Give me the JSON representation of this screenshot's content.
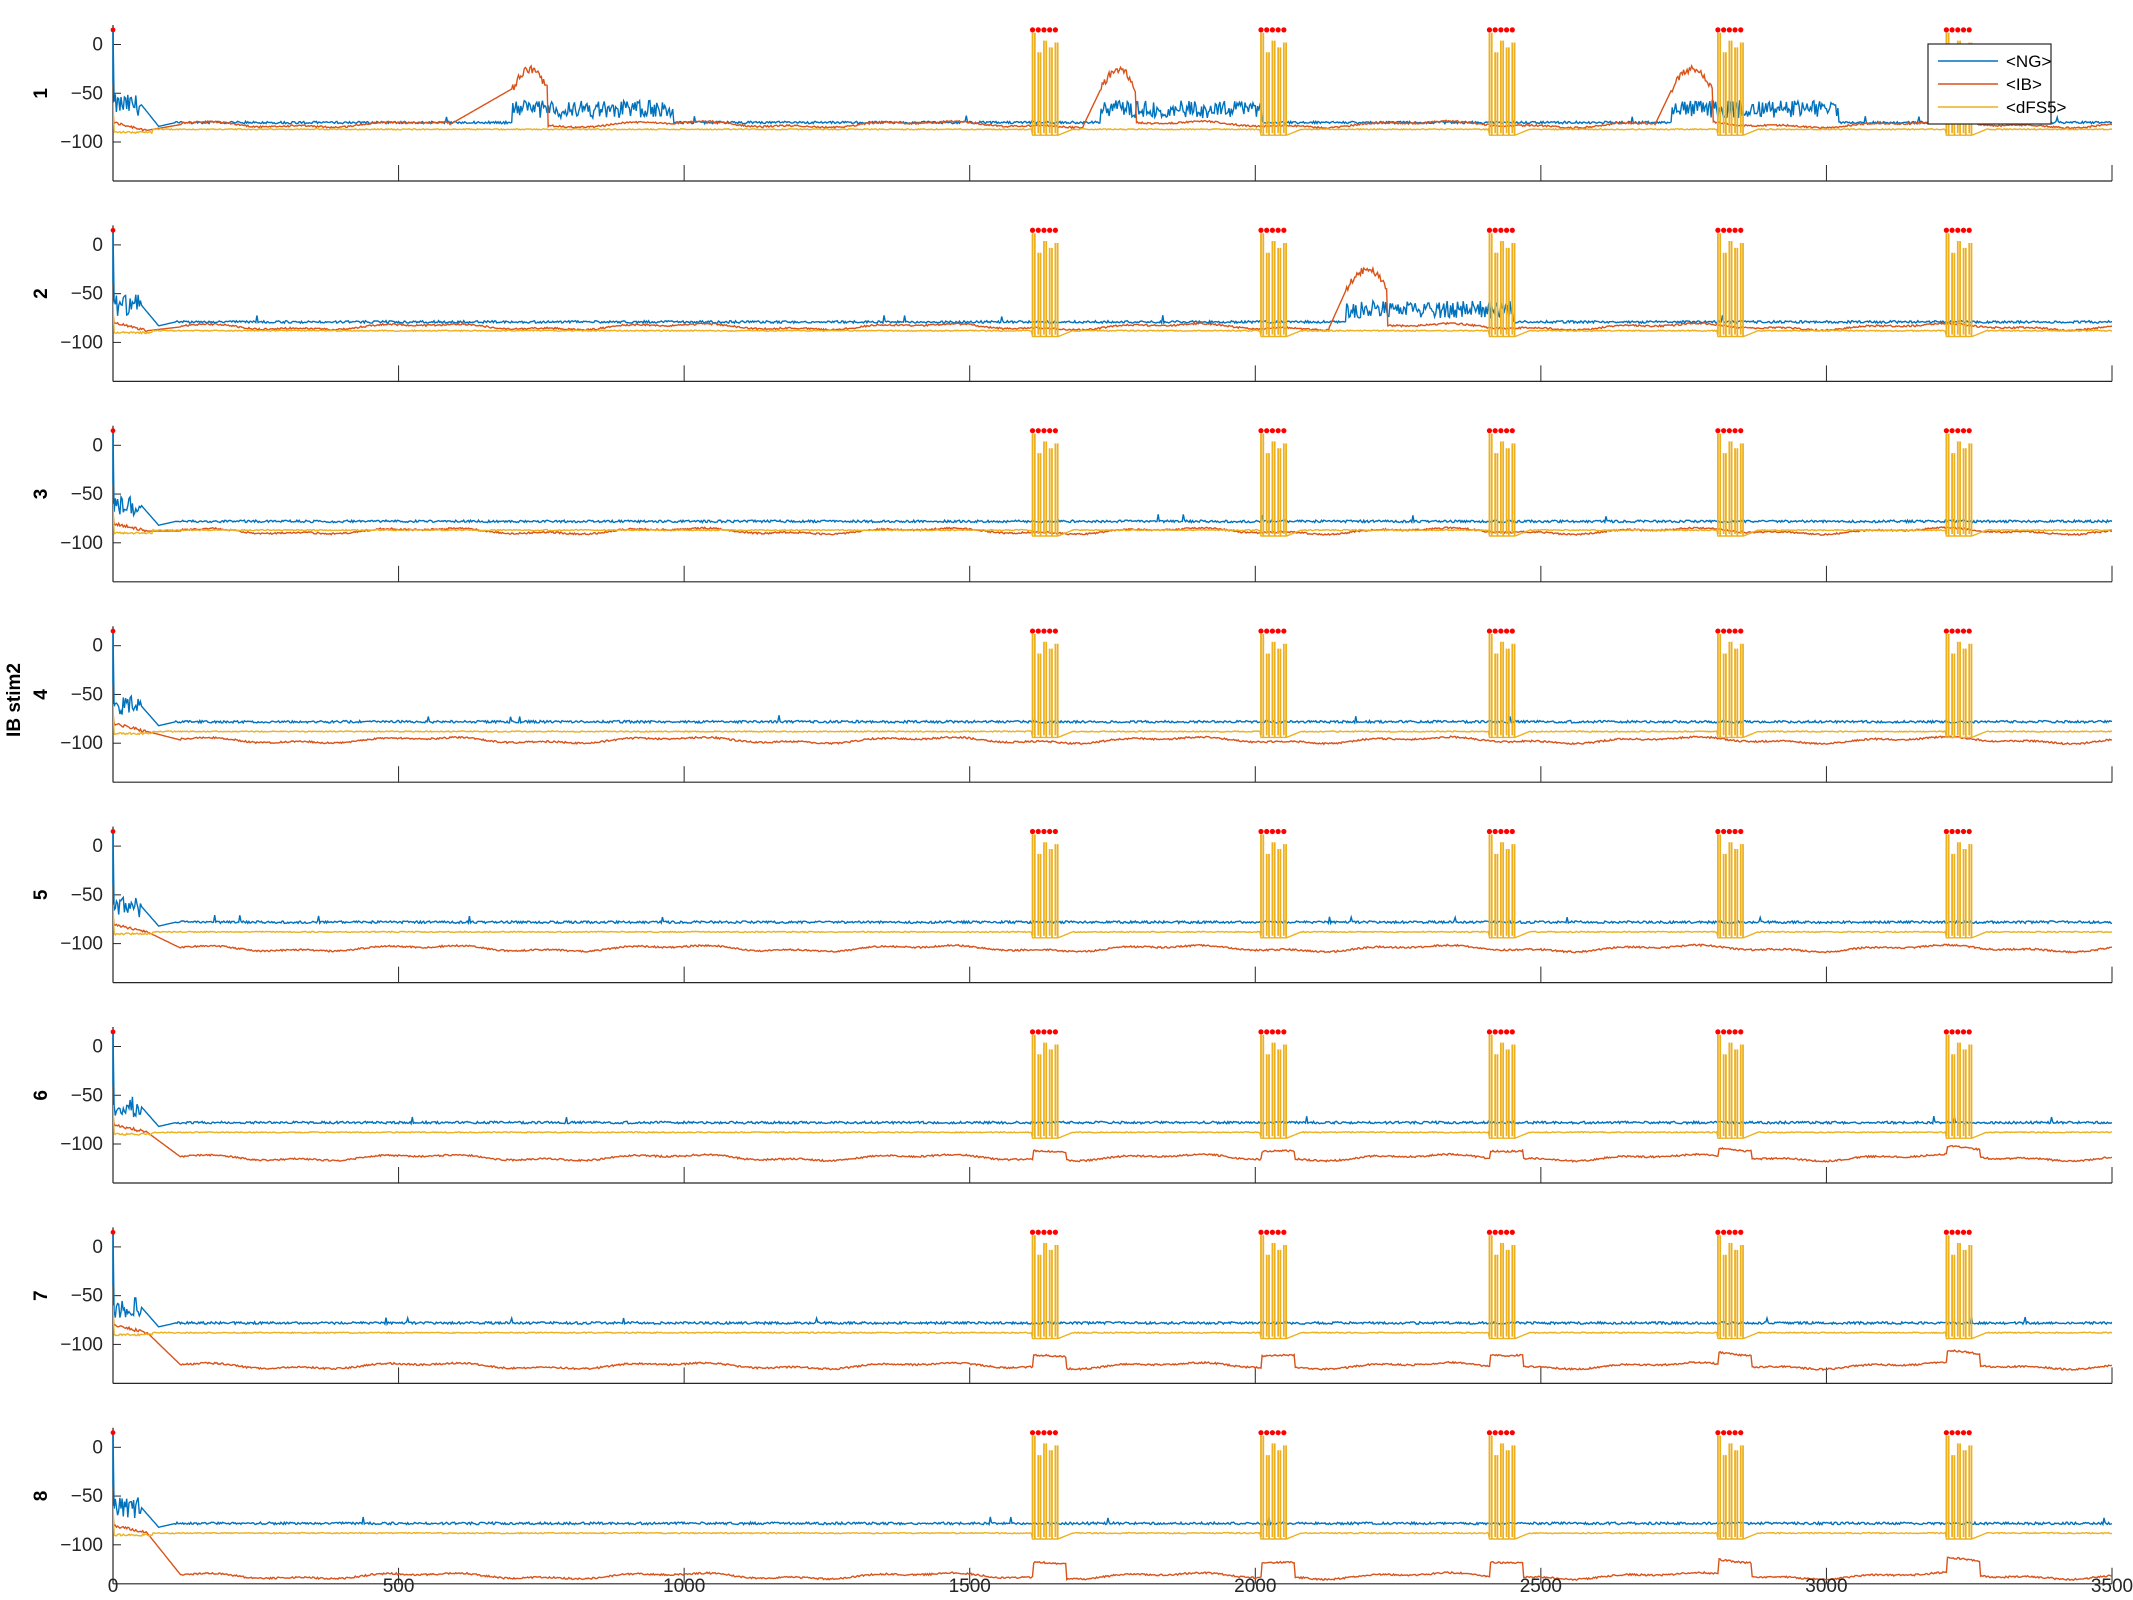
{
  "figure": {
    "ylabel": "IB stim2"
  },
  "chart_data": {
    "type": "line",
    "xlim": [
      0,
      3500
    ],
    "ylim": [
      -140,
      20
    ],
    "x_ticks": [
      0,
      500,
      1000,
      1500,
      2000,
      2500,
      3000,
      3500
    ],
    "y_ticks": [
      0,
      -50,
      -100
    ],
    "grid": false,
    "legend": {
      "placement": "top-right",
      "entries": [
        "<NG>",
        "<IB>",
        "<dFS5>"
      ]
    },
    "series_colors": {
      "NG": "#0072BD",
      "IB": "#D95319",
      "dFS5": "#EDB120",
      "marker": "#FF0000"
    },
    "burst_onsets": [
      1610,
      2010,
      2410,
      2810,
      3210
    ],
    "burst_spike_peak": 12,
    "burst_marker_y": 15,
    "panels": [
      {
        "label": "1",
        "ng_baseline": -80,
        "ib_baseline": -82,
        "dfs_baseline": -87,
        "ib_burst_bump": 0,
        "ib_plateaus": [
          [
            590,
            700,
            760,
            -45,
            -25
          ],
          [
            1700,
            1730,
            1790,
            -45,
            -25
          ],
          [
            2700,
            2730,
            2800,
            -45,
            -25
          ]
        ]
      },
      {
        "label": "2",
        "ng_baseline": -79,
        "ib_baseline": -84,
        "dfs_baseline": -88,
        "ib_burst_bump": 0,
        "ib_plateaus": [
          [
            2130,
            2160,
            2230,
            -45,
            -25
          ]
        ]
      },
      {
        "label": "3",
        "ng_baseline": -78,
        "ib_baseline": -88,
        "dfs_baseline": -87,
        "ib_burst_bump": 0,
        "ib_plateaus": []
      },
      {
        "label": "4",
        "ng_baseline": -78,
        "ib_baseline": -97,
        "dfs_baseline": -88,
        "ib_burst_bump": 0,
        "ib_plateaus": []
      },
      {
        "label": "5",
        "ng_baseline": -78,
        "ib_baseline": -105,
        "dfs_baseline": -88,
        "ib_burst_bump": 0,
        "ib_plateaus": []
      },
      {
        "label": "6",
        "ng_baseline": -78,
        "ib_baseline": -114,
        "dfs_baseline": -88,
        "ib_burst_bump": 8,
        "ib_plateaus": []
      },
      {
        "label": "7",
        "ng_baseline": -78,
        "ib_baseline": -122,
        "dfs_baseline": -88,
        "ib_burst_bump": 12,
        "ib_plateaus": []
      },
      {
        "label": "8",
        "ng_baseline": -78,
        "ib_baseline": -132,
        "dfs_baseline": -88,
        "ib_burst_bump": 15,
        "ib_plateaus": []
      }
    ]
  }
}
